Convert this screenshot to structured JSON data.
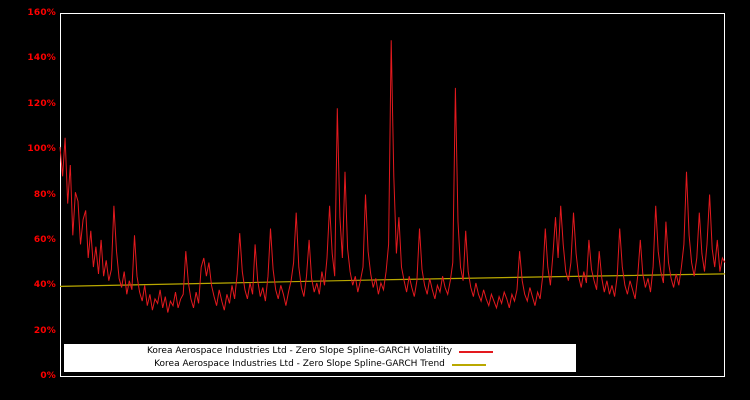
{
  "chart_data": {
    "type": "line",
    "title": "",
    "xlabel": "",
    "ylabel": "",
    "ylim": [
      0,
      160
    ],
    "y_ticks": [
      "0%",
      "20%",
      "40%",
      "60%",
      "80%",
      "100%",
      "120%",
      "140%",
      "160%"
    ],
    "y_tick_values": [
      0,
      20,
      40,
      60,
      80,
      100,
      120,
      140,
      160
    ],
    "grid": false,
    "legend_position": "bottom-center",
    "series": [
      {
        "name": "Korea Aerospace Industries Ltd - Zero Slope Spline-GARCH Volatility",
        "color": "#e3191e",
        "values": [
          101,
          88,
          105,
          76,
          93,
          62,
          81,
          77,
          58,
          69,
          73,
          52,
          64,
          48,
          57,
          45,
          60,
          44,
          51,
          42,
          47,
          75,
          55,
          43,
          39,
          46,
          36,
          42,
          38,
          62,
          44,
          37,
          33,
          40,
          31,
          36,
          29,
          34,
          32,
          38,
          30,
          35,
          28,
          33,
          31,
          37,
          30,
          34,
          36,
          55,
          41,
          34,
          30,
          37,
          32,
          48,
          52,
          44,
          50,
          40,
          35,
          31,
          38,
          33,
          29,
          36,
          32,
          40,
          34,
          45,
          63,
          46,
          38,
          34,
          41,
          36,
          58,
          42,
          35,
          39,
          33,
          44,
          65,
          47,
          38,
          34,
          40,
          36,
          31,
          37,
          42,
          50,
          72,
          48,
          39,
          35,
          44,
          60,
          43,
          37,
          41,
          36,
          46,
          40,
          52,
          75,
          54,
          44,
          118,
          70,
          52,
          90,
          56,
          46,
          40,
          44,
          37,
          42,
          48,
          80,
          55,
          45,
          39,
          43,
          36,
          41,
          38,
          46,
          58,
          148,
          88,
          54,
          70,
          48,
          42,
          37,
          44,
          39,
          35,
          42,
          65,
          47,
          40,
          36,
          43,
          38,
          34,
          40,
          37,
          44,
          39,
          36,
          42,
          50,
          127,
          68,
          48,
          42,
          64,
          46,
          39,
          35,
          41,
          36,
          33,
          38,
          34,
          31,
          36,
          33,
          30,
          35,
          32,
          37,
          34,
          30,
          36,
          33,
          38,
          55,
          42,
          36,
          33,
          39,
          35,
          31,
          37,
          34,
          44,
          65,
          48,
          40,
          54,
          70,
          52,
          75,
          58,
          46,
          42,
          50,
          72,
          54,
          44,
          39,
          46,
          41,
          60,
          47,
          42,
          38,
          55,
          43,
          37,
          42,
          36,
          40,
          35,
          44,
          65,
          48,
          40,
          36,
          42,
          38,
          34,
          44,
          60,
          45,
          39,
          43,
          37,
          48,
          75,
          55,
          46,
          41,
          68,
          50,
          43,
          39,
          45,
          40,
          48,
          58,
          90,
          62,
          50,
          44,
          52,
          72,
          54,
          46,
          58,
          80,
          56,
          48,
          60,
          46,
          52,
          50
        ]
      },
      {
        "name": "Korea Aerospace Industries Ltd - Zero Slope Spline-GARCH Trend",
        "color": "#b9a800",
        "points": [
          [
            0,
            39.5
          ],
          [
            0.25,
            41.0
          ],
          [
            0.5,
            42.5
          ],
          [
            0.75,
            43.8
          ],
          [
            1,
            45.0
          ]
        ]
      }
    ]
  },
  "styles": {
    "background": "#000000",
    "plot_background": "#000000",
    "axis_frame_color": "#ffffff",
    "tick_label_color": "#ff0000",
    "legend_bg": "#ffffff",
    "legend_text_color": "#000000"
  }
}
